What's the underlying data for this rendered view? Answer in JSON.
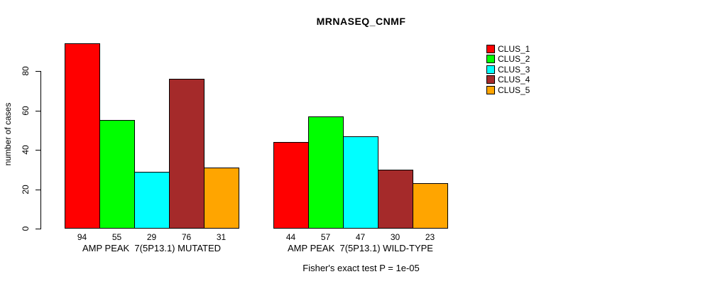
{
  "chart_data": {
    "type": "bar",
    "title": "MRNASEQ_CNMF",
    "ylabel": "number of cases",
    "annotation": "Fisher's exact test P = 1e-05",
    "yticks": [
      0,
      20,
      40,
      60,
      80
    ],
    "ylim": [
      0,
      96
    ],
    "grid": false,
    "legend_position": "right",
    "series": [
      {
        "name": "CLUS_1",
        "color": "#FF0000"
      },
      {
        "name": "CLUS_2",
        "color": "#00FF00"
      },
      {
        "name": "CLUS_3",
        "color": "#00FFFF"
      },
      {
        "name": "CLUS_4",
        "color": "#A52A2A"
      },
      {
        "name": "CLUS_5",
        "color": "#FFA500"
      }
    ],
    "groups": [
      {
        "key": "mutated",
        "label": "AMP PEAK  7(5P13.1) MUTATED",
        "values": [
          94,
          55,
          29,
          76,
          31
        ]
      },
      {
        "key": "wild-type",
        "label": "AMP PEAK  7(5P13.1) WILD-TYPE",
        "values": [
          44,
          57,
          47,
          30,
          23
        ]
      }
    ]
  }
}
